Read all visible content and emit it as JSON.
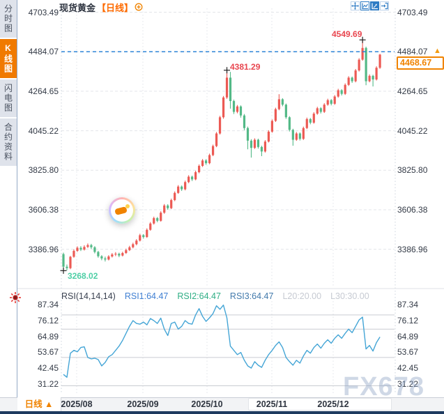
{
  "sidebar": {
    "tabs": [
      {
        "label": "分时图",
        "active": false
      },
      {
        "label": "K线图",
        "active": true
      },
      {
        "label": "闪电图",
        "active": false
      },
      {
        "label": "合约资料",
        "active": false
      }
    ]
  },
  "header": {
    "symbol": "现货黄金",
    "period_tag": "【日线】",
    "toolbar_icons": [
      "pan-icon",
      "axis-scale-x-icon",
      "axis-scale-y-icon",
      "exit-icon"
    ]
  },
  "price_axis": {
    "labels": [
      "4703.49",
      "4484.07",
      "4264.65",
      "4045.22",
      "3825.80",
      "3606.38",
      "3386.96"
    ]
  },
  "current_price": {
    "value": "4468.67",
    "arrow": "▲"
  },
  "annotations": {
    "high": "4549.69",
    "swing_high": "4381.29",
    "low": "3268.02"
  },
  "rsi_panel": {
    "items": [
      {
        "text": "RSI(14,14,14)",
        "color": "#3a4150"
      },
      {
        "text": "RSI1:64.47",
        "color": "#3f7fd2"
      },
      {
        "text": "RSI2:64.47",
        "color": "#2fae85"
      },
      {
        "text": "RSI3:64.47",
        "color": "#4179ab"
      },
      {
        "text": "L20:20.00",
        "color": "#c6cad2"
      },
      {
        "text": "L30:30.00",
        "color": "#c6cad2"
      }
    ],
    "axis_labels": [
      "87.34",
      "76.12",
      "64.89",
      "53.67",
      "42.45",
      "31.22"
    ]
  },
  "xaxis": {
    "labels": [
      "2025/08",
      "2025/09",
      "2025/10",
      "2025/11",
      "2025/12"
    ]
  },
  "footer": {
    "period_selector": "日线 ▲"
  },
  "watermark": "FX678",
  "colors": {
    "up": "#ec5a54",
    "down": "#53b987",
    "accent_orange": "#f08300",
    "dashed_line": "#1a7ad4",
    "rsi_line": "#44a5d6",
    "annotation_red": "#e8464f",
    "annotation_green": "#4fcfa6"
  },
  "chart_data": {
    "type": "candlestick",
    "title": "现货黄金 日线 (Spot Gold, Daily)",
    "price_axis_ticks": [
      4703.49,
      4484.07,
      4264.65,
      4045.22,
      3825.8,
      3606.38,
      3386.96
    ],
    "x_labels": [
      "2025/08",
      "2025/09",
      "2025/10",
      "2025/11",
      "2025/12"
    ],
    "dashed_level": 4484.07,
    "last_price": 4468.67,
    "high_marker": {
      "index": 86,
      "price": 4549.69
    },
    "swing_marker": {
      "index": 47,
      "price": 4381.29
    },
    "low_marker": {
      "index": 0,
      "price": 3268.02
    },
    "candles": [
      [
        3360,
        3368,
        3268.02,
        3290
      ],
      [
        3290,
        3302,
        3270,
        3282
      ],
      [
        3282,
        3350,
        3276,
        3345
      ],
      [
        3345,
        3386,
        3340,
        3378
      ],
      [
        3378,
        3403,
        3372,
        3395
      ],
      [
        3395,
        3404,
        3377,
        3385
      ],
      [
        3385,
        3409,
        3380,
        3400
      ],
      [
        3400,
        3419,
        3394,
        3410
      ],
      [
        3410,
        3417,
        3389,
        3398
      ],
      [
        3398,
        3404,
        3364,
        3372
      ],
      [
        3372,
        3378,
        3340,
        3348
      ],
      [
        3348,
        3354,
        3326,
        3336
      ],
      [
        3336,
        3346,
        3319,
        3330
      ],
      [
        3330,
        3354,
        3325,
        3347
      ],
      [
        3347,
        3366,
        3341,
        3358
      ],
      [
        3358,
        3371,
        3349,
        3362
      ],
      [
        3362,
        3368,
        3343,
        3352
      ],
      [
        3352,
        3373,
        3347,
        3366
      ],
      [
        3366,
        3390,
        3361,
        3382
      ],
      [
        3382,
        3406,
        3377,
        3398
      ],
      [
        3398,
        3423,
        3392,
        3415
      ],
      [
        3415,
        3443,
        3409,
        3435
      ],
      [
        3435,
        3473,
        3430,
        3465
      ],
      [
        3465,
        3471,
        3446,
        3455
      ],
      [
        3455,
        3503,
        3450,
        3495
      ],
      [
        3495,
        3538,
        3490,
        3530
      ],
      [
        3530,
        3568,
        3524,
        3560
      ],
      [
        3560,
        3566,
        3537,
        3545
      ],
      [
        3545,
        3598,
        3540,
        3590
      ],
      [
        3590,
        3638,
        3584,
        3630
      ],
      [
        3630,
        3637,
        3606,
        3615
      ],
      [
        3615,
        3668,
        3610,
        3660
      ],
      [
        3660,
        3708,
        3654,
        3700
      ],
      [
        3700,
        3743,
        3695,
        3735
      ],
      [
        3735,
        3741,
        3711,
        3720
      ],
      [
        3720,
        3768,
        3714,
        3760
      ],
      [
        3760,
        3798,
        3754,
        3790
      ],
      [
        3790,
        3796,
        3766,
        3775
      ],
      [
        3775,
        3823,
        3770,
        3815
      ],
      [
        3815,
        3858,
        3809,
        3850
      ],
      [
        3850,
        3888,
        3844,
        3880
      ],
      [
        3880,
        3887,
        3856,
        3865
      ],
      [
        3865,
        3918,
        3859,
        3910
      ],
      [
        3910,
        3968,
        3904,
        3960
      ],
      [
        3960,
        4038,
        3954,
        4030
      ],
      [
        4030,
        4128,
        4024,
        4120
      ],
      [
        4120,
        4238,
        4112,
        4230
      ],
      [
        4230,
        4381.29,
        4222,
        4340
      ],
      [
        4340,
        4372,
        4168,
        4210
      ],
      [
        4210,
        4218,
        4138,
        4150
      ],
      [
        4150,
        4188,
        4142,
        4180
      ],
      [
        4180,
        4186,
        4118,
        4130
      ],
      [
        4130,
        4138,
        4048,
        4060
      ],
      [
        4060,
        4068,
        3942,
        3990
      ],
      [
        3990,
        3998,
        3896,
        3950
      ],
      [
        3950,
        4003,
        3944,
        3995
      ],
      [
        3995,
        4001,
        3946,
        3955
      ],
      [
        3955,
        3962,
        3904,
        3930
      ],
      [
        3930,
        3993,
        3924,
        3985
      ],
      [
        3985,
        4048,
        3980,
        4040
      ],
      [
        4040,
        4108,
        4034,
        4100
      ],
      [
        4100,
        4173,
        4094,
        4165
      ],
      [
        4165,
        4248,
        4159,
        4220
      ],
      [
        4220,
        4226,
        4181,
        4190
      ],
      [
        4190,
        4196,
        4111,
        4120
      ],
      [
        4120,
        4126,
        4041,
        4050
      ],
      [
        4050,
        4056,
        3962,
        3995
      ],
      [
        3995,
        4038,
        3989,
        4030
      ],
      [
        4030,
        4036,
        3991,
        4000
      ],
      [
        4000,
        4068,
        3994,
        4060
      ],
      [
        4060,
        4118,
        4054,
        4110
      ],
      [
        4110,
        4116,
        4081,
        4090
      ],
      [
        4090,
        4148,
        4084,
        4140
      ],
      [
        4140,
        4178,
        4134,
        4170
      ],
      [
        4170,
        4176,
        4141,
        4150
      ],
      [
        4150,
        4198,
        4144,
        4190
      ],
      [
        4190,
        4223,
        4184,
        4215
      ],
      [
        4215,
        4221,
        4186,
        4195
      ],
      [
        4195,
        4243,
        4189,
        4235
      ],
      [
        4235,
        4278,
        4229,
        4270
      ],
      [
        4270,
        4276,
        4241,
        4250
      ],
      [
        4250,
        4308,
        4244,
        4300
      ],
      [
        4300,
        4348,
        4294,
        4340
      ],
      [
        4340,
        4346,
        4311,
        4320
      ],
      [
        4320,
        4388,
        4314,
        4380
      ],
      [
        4380,
        4448,
        4374,
        4440
      ],
      [
        4440,
        4549.69,
        4434,
        4505
      ],
      [
        4505,
        4512,
        4298,
        4320
      ],
      [
        4320,
        4358,
        4314,
        4350
      ],
      [
        4350,
        4356,
        4291,
        4330
      ],
      [
        4330,
        4403,
        4324,
        4395
      ],
      [
        4395,
        4472,
        4389,
        4468
      ]
    ],
    "rsi": {
      "params": "RSI(14,14,14)",
      "ref_lines": [
        80,
        70,
        50,
        30
      ],
      "axis_ticks": [
        87.34,
        76.12,
        64.89,
        53.67,
        42.45,
        31.22
      ],
      "values": [
        38,
        36,
        53,
        55,
        54,
        57,
        57.5,
        50,
        49,
        49.5,
        48.5,
        44,
        46.5,
        50.5,
        52,
        55,
        58,
        62,
        67,
        72,
        76,
        74,
        73.5,
        75,
        73,
        77.5,
        76,
        74,
        77.8,
        70,
        65.5,
        74,
        75,
        70,
        72,
        76,
        74,
        73.5,
        80,
        84.5,
        79,
        75.5,
        78,
        81,
        86.5,
        84,
        87,
        78,
        58,
        55,
        52,
        53.5,
        48,
        44,
        42.5,
        47,
        44.5,
        43,
        48,
        52,
        55,
        58.5,
        61,
        57,
        50,
        47,
        44.5,
        48,
        46,
        51,
        55,
        53,
        57,
        59.5,
        56.5,
        60,
        62.5,
        60,
        63.5,
        66,
        63.5,
        67,
        70,
        67.5,
        72,
        76.5,
        78.5,
        56,
        58.5,
        54.5,
        60.5,
        64.47
      ]
    }
  }
}
